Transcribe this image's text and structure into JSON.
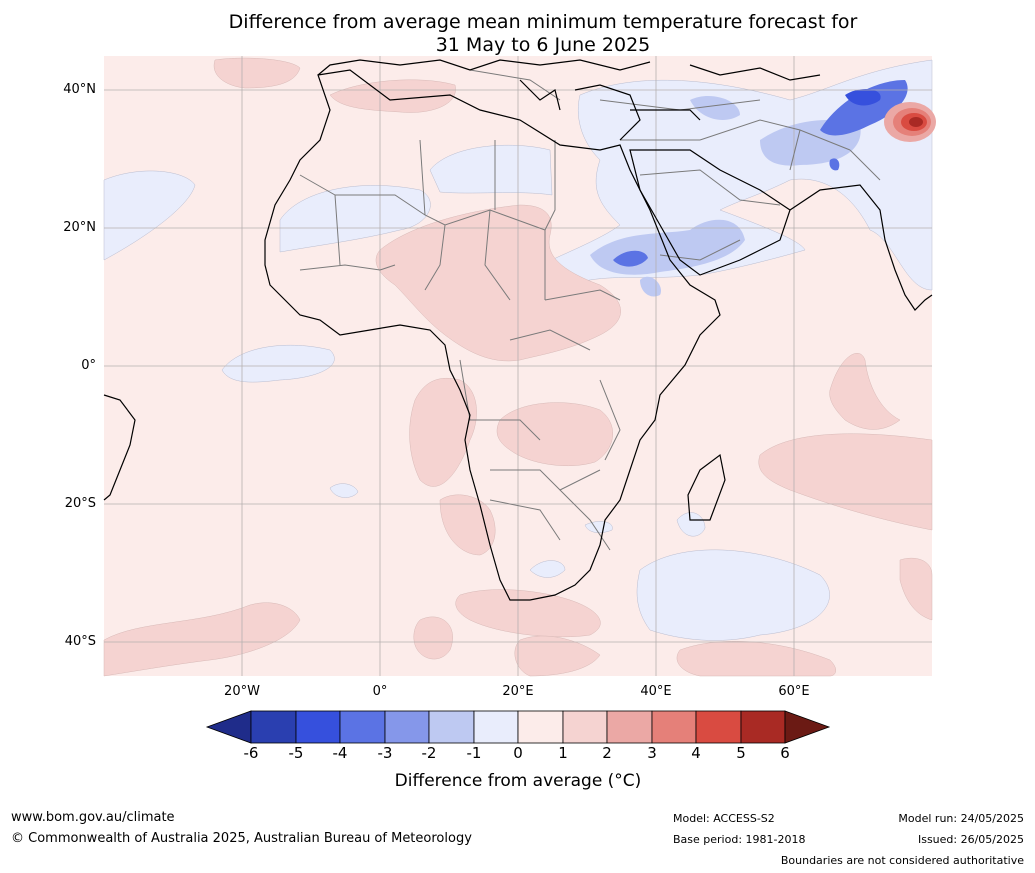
{
  "title": {
    "line1": "Difference from average mean minimum temperature forecast for",
    "line2": "31 May to 6 June 2025"
  },
  "map": {
    "latitude_labels": [
      "40°N",
      "20°N",
      "0°",
      "20°S",
      "40°S"
    ],
    "longitude_labels": [
      "20°W",
      "0°",
      "20°E",
      "40°E",
      "60°E"
    ],
    "ocean_color": "#fcecea",
    "land_base_color": "#fcecea"
  },
  "colorbar": {
    "ticks": [
      "-6",
      "-5",
      "-4",
      "-3",
      "-2",
      "-1",
      "0",
      "1",
      "2",
      "3",
      "4",
      "5",
      "6"
    ],
    "colors": [
      "#1f2c8a",
      "#2a3fb0",
      "#3650dd",
      "#5b73e4",
      "#8597ea",
      "#bec9f2",
      "#e9edfc",
      "#fcecea",
      "#f5d3d1",
      "#eba8a5",
      "#e58079",
      "#d94b41",
      "#a92a24",
      "#6b1a14"
    ],
    "label": "Difference from average (°C)"
  },
  "footer": {
    "url": "www.bom.gov.au/climate",
    "copyright": "© Commonwealth of Australia 2025, Australian Bureau of Meteorology",
    "model": "Model: ACCESS-S2",
    "base_period": "Base period: 1981-2018",
    "model_run": "Model run: 24/05/2025",
    "issued": "Issued: 26/05/2025",
    "boundaries": "Boundaries are not considered authoritative"
  }
}
